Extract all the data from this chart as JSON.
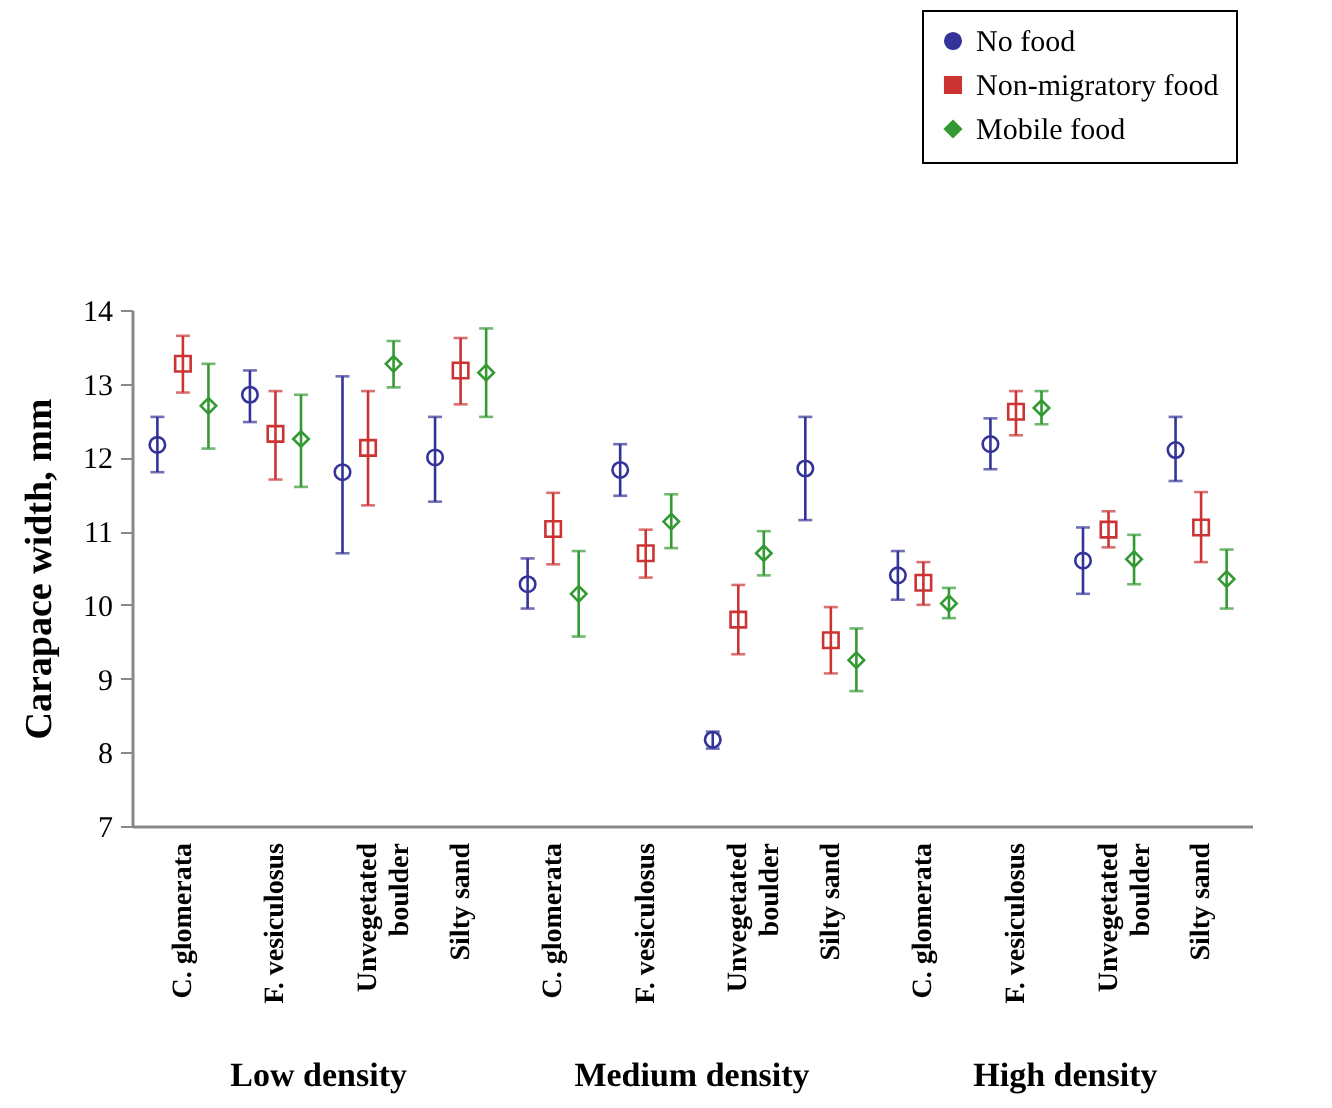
{
  "chart_data": {
    "type": "scatter",
    "ylabel": "Carapace width, mm",
    "categories": [
      "C. glomerata",
      "F. vesiculosus",
      "Unvegetated boulder",
      "Silty sand",
      "C. glomerata",
      "F. vesiculosus",
      "Unvegetated boulder",
      "Silty sand",
      "C. glomerata",
      "F. vesiculosus",
      "Unvegetated boulder",
      "Silty sand"
    ],
    "series": [
      {
        "name": "No food",
        "color": "#333399",
        "marker": "circle",
        "values": [
          12.17,
          12.85,
          11.8,
          12.0,
          10.28,
          11.83,
          8.17,
          11.85,
          10.4,
          12.18,
          10.6,
          12.1
        ],
        "errors": [
          [
            11.8,
            12.55
          ],
          [
            12.48,
            13.18
          ],
          [
            10.7,
            13.1
          ],
          [
            11.4,
            12.55
          ],
          [
            9.95,
            10.63
          ],
          [
            11.48,
            12.18
          ],
          [
            8.05,
            8.28
          ],
          [
            11.15,
            12.55
          ],
          [
            10.07,
            10.73
          ],
          [
            11.84,
            12.53
          ],
          [
            10.15,
            11.05
          ],
          [
            11.68,
            12.55
          ]
        ]
      },
      {
        "name": "Non-migratory food",
        "color": "#cc3333",
        "marker": "square",
        "values": [
          13.27,
          12.32,
          12.13,
          13.18,
          11.03,
          10.7,
          9.8,
          9.52,
          10.3,
          12.62,
          11.02,
          11.05
        ],
        "errors": [
          [
            12.88,
            13.65
          ],
          [
            11.7,
            12.9
          ],
          [
            11.35,
            12.9
          ],
          [
            12.72,
            13.62
          ],
          [
            10.55,
            11.52
          ],
          [
            10.37,
            11.02
          ],
          [
            9.33,
            10.27
          ],
          [
            9.07,
            9.97
          ],
          [
            10.0,
            10.58
          ],
          [
            12.3,
            12.9
          ],
          [
            10.78,
            11.27
          ],
          [
            10.58,
            11.53
          ]
        ]
      },
      {
        "name": "Mobile food",
        "color": "#339933",
        "marker": "diamond",
        "values": [
          12.7,
          12.25,
          13.27,
          13.15,
          10.15,
          11.13,
          10.7,
          9.25,
          10.02,
          12.67,
          10.62,
          10.35
        ],
        "errors": [
          [
            12.12,
            13.27
          ],
          [
            11.6,
            12.85
          ],
          [
            12.95,
            13.58
          ],
          [
            12.55,
            13.75
          ],
          [
            9.57,
            10.73
          ],
          [
            10.77,
            11.5
          ],
          [
            10.4,
            11.0
          ],
          [
            8.83,
            9.68
          ],
          [
            9.82,
            10.23
          ],
          [
            12.45,
            12.9
          ],
          [
            10.28,
            10.95
          ],
          [
            9.95,
            10.75
          ]
        ]
      }
    ],
    "ylim": [
      7,
      14
    ],
    "yticks": [
      7,
      8,
      9,
      10,
      11,
      12,
      13,
      14
    ],
    "grid": false,
    "legend": "top right",
    "annotations": [
      "Low density",
      "Medium density",
      "High density"
    ]
  }
}
